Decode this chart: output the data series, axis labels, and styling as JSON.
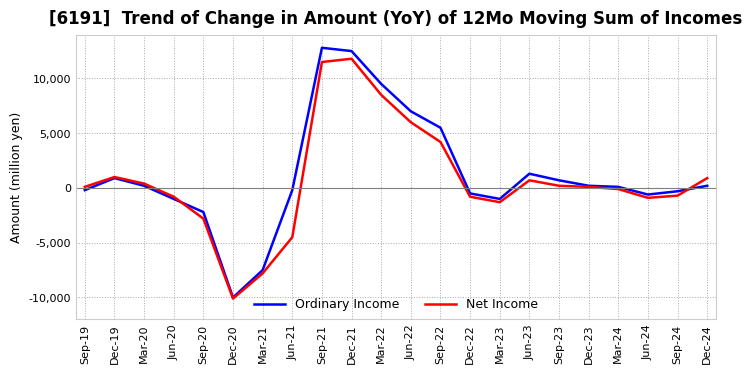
{
  "title": "[6191]  Trend of Change in Amount (YoY) of 12Mo Moving Sum of Incomes",
  "ylabel": "Amount (million yen)",
  "ylim": [
    -12000,
    14000
  ],
  "yticks": [
    -10000,
    -5000,
    0,
    5000,
    10000
  ],
  "x_labels": [
    "Sep-19",
    "Dec-19",
    "Mar-20",
    "Jun-20",
    "Sep-20",
    "Dec-20",
    "Mar-21",
    "Jun-21",
    "Sep-21",
    "Dec-21",
    "Mar-22",
    "Jun-22",
    "Sep-22",
    "Dec-22",
    "Mar-23",
    "Jun-23",
    "Sep-23",
    "Dec-23",
    "Mar-24",
    "Jun-24",
    "Sep-24",
    "Dec-24"
  ],
  "ordinary_income": [
    -200,
    900,
    200,
    -1000,
    -2200,
    -10000,
    -7500,
    -200,
    12800,
    12500,
    9500,
    7000,
    5500,
    -500,
    -1000,
    1300,
    700,
    200,
    100,
    -600,
    -300,
    200
  ],
  "net_income": [
    100,
    1000,
    400,
    -800,
    -2800,
    -10100,
    -7800,
    -4500,
    11500,
    11800,
    8500,
    6000,
    4200,
    -800,
    -1300,
    700,
    200,
    100,
    -100,
    -900,
    -700,
    900
  ],
  "ordinary_color": "#0000ff",
  "net_color": "#ff0000",
  "line_width": 1.8,
  "legend_labels": [
    "Ordinary Income",
    "Net Income"
  ],
  "background_color": "#ffffff",
  "grid_color": "#aaaaaa",
  "title_fontsize": 12,
  "tick_fontsize": 8
}
